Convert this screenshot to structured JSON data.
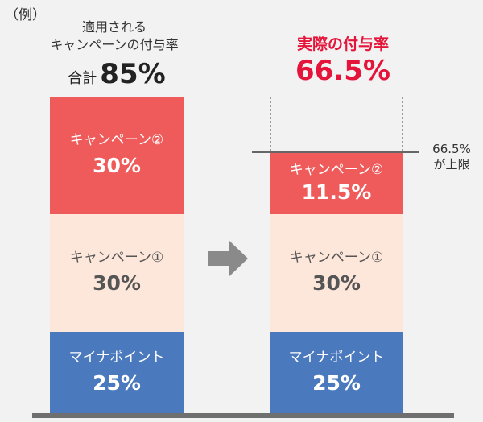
{
  "example_label": "（例）",
  "left": {
    "heading_line1": "適用される",
    "heading_line2": "キャンペーンの付与率",
    "total_label": "合計",
    "total_value": "85%",
    "segments": {
      "campaign2": {
        "name": "キャンペーン②",
        "value": "30%"
      },
      "campaign1": {
        "name": "キャンペーン①",
        "value": "30%"
      },
      "mynapoint": {
        "name": "マイナポイント",
        "value": "25%"
      }
    }
  },
  "right": {
    "heading": "実際の付与率",
    "rate": "66.5%",
    "segments": {
      "campaign2": {
        "name": "キャンペーン②",
        "value": "11.5%"
      },
      "campaign1": {
        "name": "キャンペーン①",
        "value": "30%"
      },
      "mynapoint": {
        "name": "マイナポイント",
        "value": "25%"
      }
    },
    "cap_label_line1": "66.5%",
    "cap_label_line2": "が上限"
  },
  "colors": {
    "background": "#f2f2f2",
    "campaign2": "#ef5b5b",
    "campaign1": "#fde6da",
    "mynapoint": "#4a79be",
    "emphasis": "#e5143a",
    "arrow": "#8a8a8a"
  },
  "arrow_icon": "right-arrow-icon"
}
